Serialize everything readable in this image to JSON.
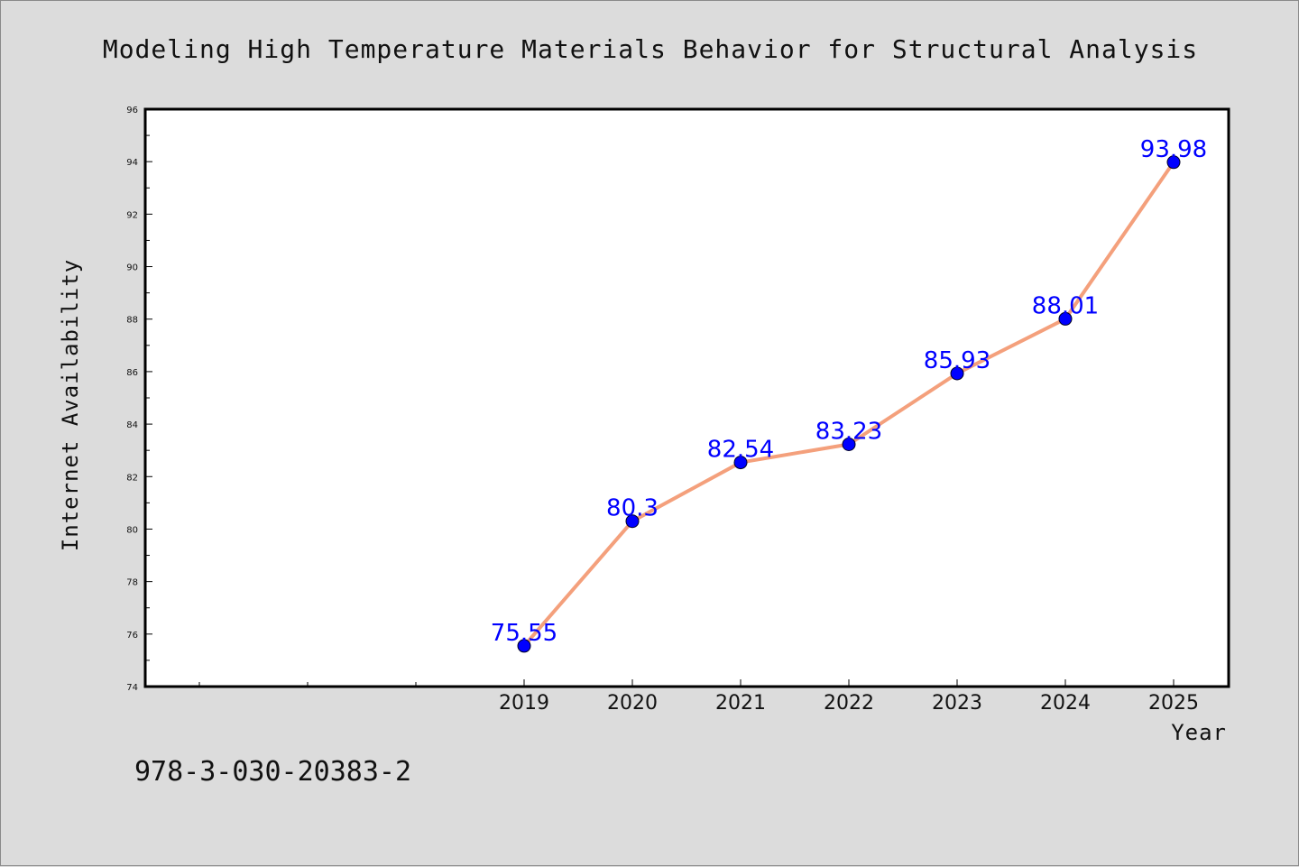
{
  "chart_data": {
    "type": "line",
    "title": "Modeling High Temperature Materials Behavior for Structural Analysis",
    "xlabel": "Year",
    "ylabel": "Internet Availability",
    "categories": [
      "2019",
      "2020",
      "2021",
      "2022",
      "2023",
      "2024",
      "2025"
    ],
    "series": [
      {
        "values": [
          75.55,
          80.3,
          82.54,
          83.23,
          85.93,
          88.01,
          93.98
        ],
        "data_labels": [
          "75.55",
          "80.3",
          "82.54",
          "83.23",
          "85.93",
          "88.01",
          "93.98"
        ],
        "line_color": "#f4a07c",
        "marker_color": "#0000ff"
      }
    ],
    "ylim": [
      74,
      96
    ],
    "yticks": [
      74,
      76,
      78,
      80,
      82,
      84,
      86,
      88,
      90,
      92,
      94,
      96
    ],
    "grid": false,
    "legend": "none"
  },
  "footnote": "978-3-030-20383-2",
  "colors": {
    "background": "#dcdcdc",
    "plot_area": "#ffffff",
    "data_label": "#0000ff"
  }
}
